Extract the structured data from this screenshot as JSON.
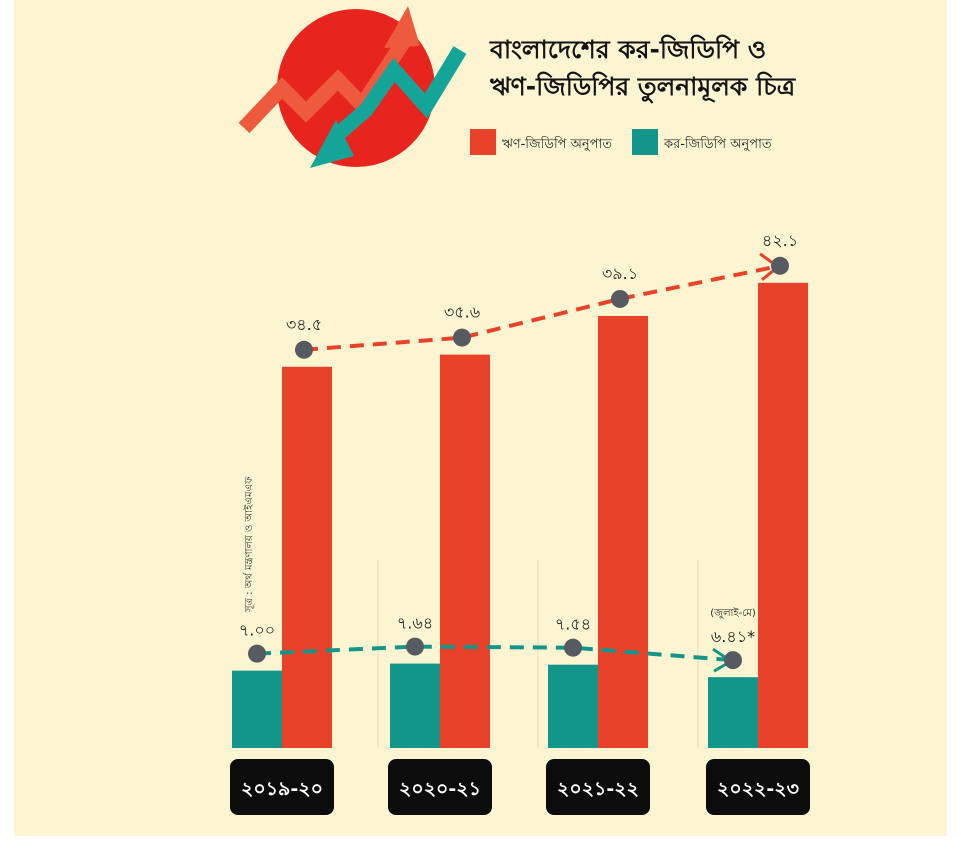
{
  "header": {
    "title_line1": "বাংলাদেশের কর-জিডিপি ও",
    "title_line2": "ঋণ-জিডিপির তুলনামূলক চিত্র",
    "logo_icon": "trend-arrows-icon"
  },
  "source_note": "সূত্র : অর্থ মন্ত্রণালয় ও আইএমএফ",
  "colors": {
    "debt": "#e8432a",
    "tax": "#14958a",
    "background": "#fdf5d2",
    "marker": "#565a61",
    "year_box": "#0c0c0c"
  },
  "chart_data": {
    "type": "bar",
    "categories": [
      "২০১৯-২০",
      "২০২০-২১",
      "২০২১-২২",
      "২০২২-২৩"
    ],
    "series": [
      {
        "name": "ঋণ-জিডিপি অনুপাত",
        "values": [
          34.5,
          35.6,
          39.1,
          42.1
        ],
        "labels": [
          "৩৪.৫",
          "৩৫.৬",
          "৩৯.১",
          "৪২.১"
        ]
      },
      {
        "name": "কর-জিডিপি অনুপাত",
        "values": [
          7.0,
          7.64,
          7.54,
          6.41
        ],
        "labels": [
          "৭.০০",
          "৭.৬৪",
          "৭.৫৪",
          "৬.৪১*"
        ]
      }
    ],
    "annotations": [
      {
        "category": "২০২২-২৩",
        "series": "কর-জিডিপি অনুপাত",
        "text": "(জুলাই-মে)"
      }
    ],
    "legend_position": "top-right",
    "ylim": [
      0,
      45
    ],
    "grid": false,
    "xlabel": "",
    "ylabel": ""
  }
}
